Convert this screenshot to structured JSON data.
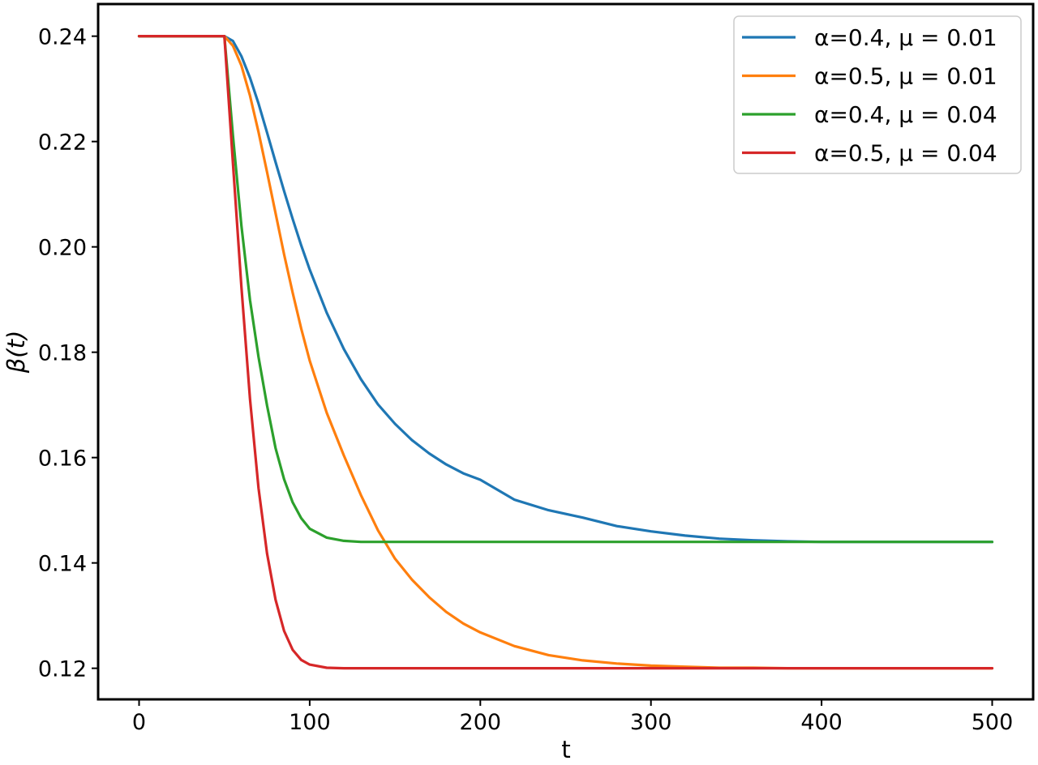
{
  "chart_data": {
    "type": "line",
    "title": "",
    "xlabel": "t",
    "ylabel": "β(t)",
    "xlim": [
      -24,
      524
    ],
    "ylim": [
      0.1141,
      0.2461
    ],
    "xticks": [
      0,
      100,
      200,
      300,
      400,
      500
    ],
    "xtick_labels": [
      "0",
      "100",
      "200",
      "300",
      "400",
      "500"
    ],
    "yticks": [
      0.12,
      0.14,
      0.16,
      0.18,
      0.2,
      0.22,
      0.24
    ],
    "ytick_labels": [
      "0.12",
      "0.14",
      "0.16",
      "0.18",
      "0.20",
      "0.22",
      "0.24"
    ],
    "grid": false,
    "legend_position": "top-right",
    "x": [
      0,
      10,
      20,
      30,
      40,
      50,
      55,
      60,
      65,
      70,
      75,
      80,
      85,
      90,
      95,
      100,
      110,
      120,
      130,
      140,
      150,
      160,
      170,
      180,
      190,
      200,
      220,
      240,
      260,
      280,
      300,
      320,
      340,
      360,
      380,
      400,
      420,
      440,
      460,
      480,
      500
    ],
    "series": [
      {
        "name": "α=0.4, μ = 0.01",
        "color": "#1f77b4",
        "values": [
          0.24,
          0.24,
          0.24,
          0.24,
          0.24,
          0.24,
          0.2391,
          0.2362,
          0.2321,
          0.2272,
          0.2217,
          0.2161,
          0.2106,
          0.2053,
          0.2003,
          0.1957,
          0.1875,
          0.1806,
          0.1749,
          0.1701,
          0.1664,
          0.1633,
          0.1608,
          0.1587,
          0.157,
          0.1558,
          0.152,
          0.15,
          0.1486,
          0.147,
          0.146,
          0.1452,
          0.1446,
          0.1443,
          0.1441,
          0.144,
          0.144,
          0.144,
          0.144,
          0.144,
          0.144
        ]
      },
      {
        "name": "α=0.5, μ = 0.01",
        "color": "#ff7f0e",
        "values": [
          0.24,
          0.24,
          0.24,
          0.24,
          0.24,
          0.24,
          0.2382,
          0.2344,
          0.2287,
          0.2218,
          0.2142,
          0.2064,
          0.1986,
          0.1913,
          0.1845,
          0.1784,
          0.1685,
          0.1604,
          0.1529,
          0.1462,
          0.1408,
          0.1368,
          0.1335,
          0.1307,
          0.1285,
          0.1268,
          0.1242,
          0.1225,
          0.1215,
          0.1209,
          0.1205,
          0.1203,
          0.1201,
          0.1201,
          0.12,
          0.12,
          0.12,
          0.12,
          0.12,
          0.12,
          0.12
        ]
      },
      {
        "name": "α=0.4, μ = 0.04",
        "color": "#2ca02c",
        "values": [
          0.24,
          0.24,
          0.24,
          0.24,
          0.24,
          0.24,
          0.2212,
          0.204,
          0.1899,
          0.1791,
          0.1699,
          0.1618,
          0.1559,
          0.1515,
          0.1485,
          0.1465,
          0.1448,
          0.1442,
          0.144,
          0.144,
          0.144,
          0.144,
          0.144,
          0.144,
          0.144,
          0.144,
          0.144,
          0.144,
          0.144,
          0.144,
          0.144,
          0.144,
          0.144,
          0.144,
          0.144,
          0.144,
          0.144,
          0.144,
          0.144,
          0.144,
          0.144
        ]
      },
      {
        "name": "α=0.5, μ = 0.04",
        "color": "#d62728",
        "values": [
          0.24,
          0.24,
          0.24,
          0.24,
          0.24,
          0.24,
          0.216,
          0.1924,
          0.1711,
          0.1542,
          0.1418,
          0.133,
          0.1271,
          0.1235,
          0.1216,
          0.1207,
          0.1201,
          0.12,
          0.12,
          0.12,
          0.12,
          0.12,
          0.12,
          0.12,
          0.12,
          0.12,
          0.12,
          0.12,
          0.12,
          0.12,
          0.12,
          0.12,
          0.12,
          0.12,
          0.12,
          0.12,
          0.12,
          0.12,
          0.12,
          0.12,
          0.12
        ]
      }
    ]
  }
}
